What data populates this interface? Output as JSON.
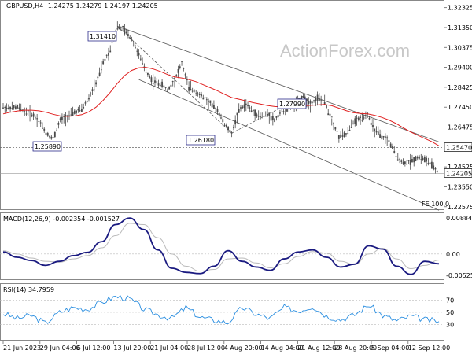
{
  "watermark": "ActionForex.com",
  "main": {
    "title": "GBPUSD,H4",
    "ohlc": "1.24275 1.24279 1.24197 1.24205",
    "price_labels": [
      "1.32325",
      "1.31350",
      "1.30375",
      "1.29400",
      "1.28425",
      "1.27450",
      "1.26475",
      "1.25470",
      "1.24525",
      "1.23550",
      "1.22575"
    ],
    "current_price": "1.24205",
    "level_price": "1.25470",
    "annotations": [
      "1.31410",
      "1.25890",
      "1.26180",
      "1.27990"
    ],
    "fe_label": "FE 100.0"
  },
  "macd": {
    "title": "MACD(12,26,9) -0.002354 -0.001527",
    "scale_labels": [
      "0.008846",
      "0.00",
      "-0.005252"
    ]
  },
  "rsi": {
    "title": "RSI(14) 34.7959",
    "scale_labels": [
      "70",
      "50",
      "30"
    ]
  },
  "x_labels": [
    "21 Jun 2023",
    "29 Jun 04:00",
    "6 Jul 12:00",
    "13 Jul 20:00",
    "21 Jul 04:00",
    "28 Jul 12:00",
    "4 Aug 20:00",
    "14 Aug 04:00",
    "21 Aug 12:00",
    "28 Aug 20:00",
    "5 Sep 04:00",
    "12 Sep 12:00"
  ],
  "colors": {
    "candle": "#4a4a4a",
    "ma": "#e02020",
    "macd": "#1a1a80",
    "signal": "#bbbbbb",
    "rsi": "#2a8ee0",
    "trend": "#555555",
    "level": "#666666"
  },
  "chart_data": [
    {
      "type": "line",
      "title": "GBPUSD,H4",
      "subtitle": "1.24275 1.24279 1.24197 1.24205",
      "ylim": [
        1.2245,
        1.3262
      ],
      "x": [
        "21 Jun",
        "22 Jun",
        "23 Jun",
        "26 Jun",
        "27 Jun",
        "28 Jun",
        "29 Jun",
        "30 Jun",
        "3 Jul",
        "4 Jul",
        "5 Jul",
        "6 Jul",
        "7 Jul",
        "10 Jul",
        "11 Jul",
        "12 Jul",
        "13 Jul",
        "14 Jul",
        "17 Jul",
        "18 Jul",
        "19 Jul",
        "20 Jul",
        "21 Jul",
        "24 Jul",
        "25 Jul",
        "26 Jul",
        "27 Jul",
        "28 Jul",
        "31 Jul",
        "1 Aug",
        "2 Aug",
        "3 Aug",
        "4 Aug",
        "7 Aug",
        "8 Aug",
        "9 Aug",
        "10 Aug",
        "11 Aug",
        "14 Aug",
        "15 Aug",
        "16 Aug",
        "17 Aug",
        "18 Aug",
        "21 Aug",
        "22 Aug",
        "23 Aug",
        "24 Aug",
        "25 Aug",
        "28 Aug",
        "29 Aug",
        "30 Aug",
        "31 Aug",
        "1 Sep",
        "4 Sep",
        "5 Sep",
        "6 Sep",
        "7 Sep",
        "8 Sep",
        "11 Sep",
        "12 Sep",
        "13 Sep",
        "14 Sep"
      ],
      "series": [
        {
          "name": "GBPUSD,H4",
          "values": [
            1.2745,
            1.274,
            1.2745,
            1.2725,
            1.271,
            1.268,
            1.262,
            1.2589,
            1.268,
            1.27,
            1.272,
            1.2735,
            1.279,
            1.286,
            1.296,
            1.303,
            1.3141,
            1.312,
            1.308,
            1.3,
            1.292,
            1.287,
            1.286,
            1.283,
            1.288,
            1.296,
            1.284,
            1.282,
            1.279,
            1.276,
            1.273,
            1.266,
            1.2618,
            1.273,
            1.276,
            1.272,
            1.27,
            1.271,
            1.268,
            1.273,
            1.274,
            1.276,
            1.2799,
            1.276,
            1.279,
            1.277,
            1.268,
            1.26,
            1.261,
            1.267,
            1.269,
            1.271,
            1.263,
            1.26,
            1.258,
            1.251,
            1.247,
            1.248,
            1.25,
            1.249,
            1.246,
            1.242
          ]
        },
        {
          "name": "MA",
          "values": [
            1.2712,
            1.272,
            1.2726,
            1.273,
            1.273,
            1.2727,
            1.272,
            1.271,
            1.2702,
            1.27,
            1.2702,
            1.2708,
            1.2722,
            1.2745,
            1.2778,
            1.2818,
            1.2862,
            1.29,
            1.2925,
            1.2938,
            1.294,
            1.2932,
            1.292,
            1.2905,
            1.2893,
            1.2888,
            1.288,
            1.287,
            1.2855,
            1.284,
            1.2825,
            1.2808,
            1.2792,
            1.2784,
            1.2776,
            1.2767,
            1.276,
            1.2753,
            1.2748,
            1.2746,
            1.2746,
            1.2748,
            1.2752,
            1.2754,
            1.2756,
            1.2758,
            1.2752,
            1.274,
            1.2728,
            1.2718,
            1.2714,
            1.2712,
            1.2705,
            1.2695,
            1.2682,
            1.2665,
            1.2644,
            1.2624,
            1.2608,
            1.2592,
            1.2576,
            1.2556
          ]
        }
      ]
    },
    {
      "type": "line",
      "title": "MACD(12,26,9) -0.002354 -0.001527",
      "ylim": [
        -0.0062,
        0.0098
      ],
      "x": [
        "21 Jun",
        "23 Jun",
        "27 Jun",
        "29 Jun",
        "3 Jul",
        "5 Jul",
        "7 Jul",
        "11 Jul",
        "13 Jul",
        "17 Jul",
        "19 Jul",
        "21 Jul",
        "25 Jul",
        "27 Jul",
        "31 Jul",
        "2 Aug",
        "4 Aug",
        "8 Aug",
        "10 Aug",
        "14 Aug",
        "16 Aug",
        "18 Aug",
        "22 Aug",
        "24 Aug",
        "28 Aug",
        "30 Aug",
        "1 Sep",
        "5 Sep",
        "7 Sep",
        "11 Sep",
        "13 Sep",
        "14 Sep"
      ],
      "series": [
        {
          "name": "MACD",
          "values": [
            0.0005,
            -0.0008,
            -0.0016,
            -0.0028,
            -0.0018,
            -0.0004,
            0.0004,
            0.003,
            0.0072,
            0.0088,
            0.006,
            0.001,
            -0.0035,
            -0.0045,
            -0.0048,
            -0.003,
            0.0008,
            -0.0018,
            -0.0032,
            -0.004,
            -0.0012,
            0.0005,
            0.001,
            -0.0008,
            -0.0032,
            -0.0025,
            0.002,
            0.0012,
            -0.003,
            -0.005,
            -0.0018,
            -0.0024
          ]
        },
        {
          "name": "Signal",
          "values": [
            0.0008,
            0.0,
            -0.001,
            -0.0018,
            -0.002,
            -0.0012,
            -0.0004,
            0.0015,
            0.0045,
            0.0075,
            0.0072,
            0.004,
            0.0,
            -0.003,
            -0.0042,
            -0.0038,
            -0.0012,
            -0.001,
            -0.0022,
            -0.0034,
            -0.0024,
            -0.0006,
            0.0006,
            0.0002,
            -0.0018,
            -0.0026,
            0.0,
            0.0014,
            -0.0012,
            -0.0036,
            -0.0028,
            -0.0015
          ]
        }
      ]
    },
    {
      "type": "line",
      "title": "RSI(14) 34.7959",
      "ylim": [
        5,
        95
      ],
      "x": [
        "21 Jun",
        "23 Jun",
        "27 Jun",
        "29 Jun",
        "3 Jul",
        "5 Jul",
        "7 Jul",
        "11 Jul",
        "13 Jul",
        "17 Jul",
        "19 Jul",
        "21 Jul",
        "25 Jul",
        "27 Jul",
        "31 Jul",
        "2 Aug",
        "4 Aug",
        "8 Aug",
        "10 Aug",
        "14 Aug",
        "16 Aug",
        "18 Aug",
        "22 Aug",
        "24 Aug",
        "28 Aug",
        "30 Aug",
        "1 Sep",
        "5 Sep",
        "7 Sep",
        "11 Sep",
        "13 Sep",
        "14 Sep"
      ],
      "series": [
        {
          "name": "RSI(14)",
          "values": [
            48,
            40,
            45,
            32,
            50,
            58,
            55,
            66,
            76,
            72,
            55,
            46,
            40,
            58,
            42,
            37,
            33,
            58,
            47,
            40,
            58,
            52,
            60,
            44,
            38,
            46,
            62,
            45,
            36,
            44,
            38,
            35
          ]
        }
      ]
    }
  ]
}
